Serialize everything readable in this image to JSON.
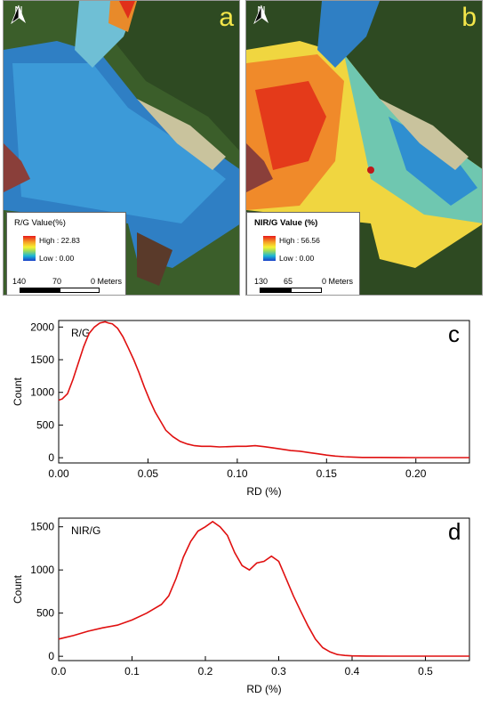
{
  "maps": [
    {
      "panel": "a",
      "north": "N",
      "legend_title": "R/G Value(%)",
      "legend_high": "High : 22.83",
      "legend_low": "Low : 0.00",
      "scale_labels": [
        "140",
        "70",
        "0 Meters"
      ]
    },
    {
      "panel": "b",
      "north": "N",
      "legend_title": "NIR/G Value (%)",
      "legend_high": "High : 56.56",
      "legend_low": "Low : 0.00",
      "scale_labels": [
        "130",
        "65",
        "0 Meters"
      ]
    }
  ],
  "chart_data": [
    {
      "type": "line",
      "panel": "c",
      "title": "R/G",
      "xlabel": "RD  (%)",
      "ylabel": "Count",
      "xlim": [
        0,
        0.23
      ],
      "ylim": [
        -80,
        2100
      ],
      "xticks": [
        0.0,
        0.05,
        0.1,
        0.15,
        0.2
      ],
      "xtick_labels": [
        "0.00",
        "0.05",
        "0.10",
        "0.15",
        "0.20"
      ],
      "yticks": [
        0,
        500,
        1000,
        1500,
        2000
      ],
      "ytick_labels": [
        "0",
        "500",
        "1000",
        "1500",
        "2000"
      ],
      "color": "#e01010",
      "series": [
        {
          "x": [
            0.0,
            0.002,
            0.005,
            0.008,
            0.011,
            0.014,
            0.017,
            0.02,
            0.023,
            0.026,
            0.028,
            0.03,
            0.033,
            0.036,
            0.039,
            0.042,
            0.045,
            0.048,
            0.051,
            0.054,
            0.057,
            0.06,
            0.064,
            0.068,
            0.072,
            0.076,
            0.08,
            0.085,
            0.09,
            0.095,
            0.1,
            0.105,
            0.11,
            0.115,
            0.12,
            0.125,
            0.13,
            0.135,
            0.14,
            0.145,
            0.15,
            0.155,
            0.16,
            0.165,
            0.17,
            0.18,
            0.19,
            0.2,
            0.21,
            0.22,
            0.23
          ],
          "y": [
            880,
            900,
            980,
            1200,
            1450,
            1700,
            1900,
            2000,
            2060,
            2080,
            2060,
            2050,
            1980,
            1850,
            1680,
            1500,
            1300,
            1080,
            880,
            700,
            560,
            420,
            320,
            250,
            210,
            185,
            175,
            175,
            165,
            170,
            175,
            175,
            185,
            170,
            150,
            130,
            110,
            100,
            80,
            60,
            40,
            25,
            15,
            10,
            5,
            5,
            3,
            2,
            2,
            2,
            2
          ]
        }
      ]
    },
    {
      "type": "line",
      "panel": "d",
      "title": "NIR/G",
      "xlabel": "RD (%)",
      "ylabel": "Count",
      "xlim": [
        0,
        0.56
      ],
      "ylim": [
        -50,
        1600
      ],
      "xticks": [
        0.0,
        0.1,
        0.2,
        0.3,
        0.4,
        0.5
      ],
      "xtick_labels": [
        "0.0",
        "0.1",
        "0.2",
        "0.3",
        "0.4",
        "0.5"
      ],
      "yticks": [
        0,
        500,
        1000,
        1500
      ],
      "ytick_labels": [
        "0",
        "500",
        "1000",
        "1500"
      ],
      "color": "#e01010",
      "series": [
        {
          "x": [
            0.0,
            0.01,
            0.02,
            0.04,
            0.06,
            0.08,
            0.1,
            0.12,
            0.14,
            0.15,
            0.16,
            0.17,
            0.18,
            0.19,
            0.2,
            0.21,
            0.22,
            0.23,
            0.24,
            0.25,
            0.26,
            0.27,
            0.28,
            0.29,
            0.3,
            0.31,
            0.32,
            0.33,
            0.34,
            0.35,
            0.36,
            0.37,
            0.38,
            0.39,
            0.4,
            0.42,
            0.45,
            0.5,
            0.56
          ],
          "y": [
            200,
            220,
            240,
            290,
            330,
            360,
            420,
            500,
            600,
            700,
            900,
            1150,
            1330,
            1450,
            1500,
            1560,
            1500,
            1400,
            1200,
            1050,
            1000,
            1080,
            1100,
            1160,
            1100,
            900,
            700,
            520,
            350,
            200,
            100,
            50,
            20,
            10,
            5,
            3,
            2,
            2,
            2
          ]
        }
      ]
    }
  ]
}
